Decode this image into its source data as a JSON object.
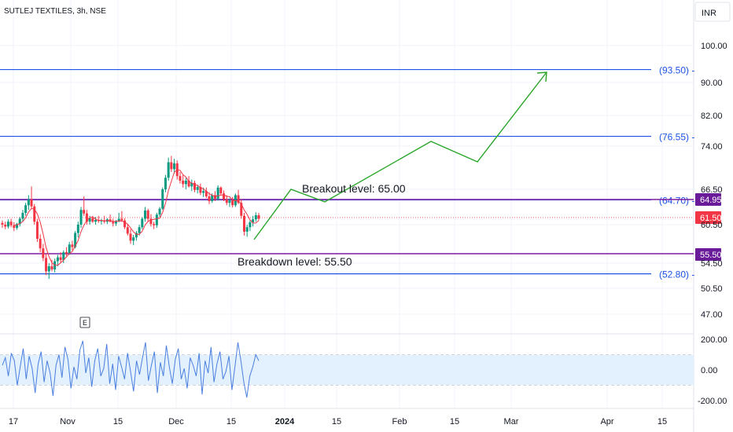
{
  "header": {
    "symbol_label": "SUTLEJ TEXTILES, 3h, NSE",
    "currency": "INR"
  },
  "chart_data": {
    "type": "candlestick",
    "y_axis": {
      "ticks": [
        100.0,
        90.0,
        82.0,
        74.0,
        66.5,
        60.5,
        54.5,
        50.5,
        47.0
      ]
    },
    "x_axis": {
      "ticks": [
        "17",
        "Nov",
        "15",
        "Dec",
        "15",
        "2024",
        "15",
        "Feb",
        "15",
        "Mar",
        "Apr",
        "15"
      ]
    },
    "horizontal_levels": [
      {
        "label": "(93.50)",
        "value": 93.5,
        "color": "#1e53e5"
      },
      {
        "label": "(76.55)",
        "value": 76.55,
        "color": "#1e53e5"
      },
      {
        "label": "(64.70)",
        "value": 64.7,
        "color": "#1e53e5"
      },
      {
        "label": "(52.80)",
        "value": 52.8,
        "color": "#1e53e5"
      }
    ],
    "price_tags": [
      {
        "text": "64.95",
        "value": 64.95,
        "color": "#6a1b9a"
      },
      {
        "text": "61.50",
        "value": 61.5,
        "color": "#f23645"
      },
      {
        "text": "55.50",
        "value": 55.5,
        "color": "#6a1b9a"
      }
    ],
    "annotations": [
      {
        "text": "Breakout level: 65.00",
        "value": 65.0
      },
      {
        "text": "Breakdown level: 55.50",
        "value": 55.5
      }
    ],
    "projection_path": [
      [
        323,
        305
      ],
      [
        370,
        241
      ],
      [
        413,
        257
      ],
      [
        548,
        180
      ],
      [
        607,
        206
      ],
      [
        695,
        92
      ]
    ],
    "candles": [
      [
        60.8,
        61.2,
        60.0,
        60.5
      ],
      [
        60.5,
        61.0,
        59.8,
        60.2
      ],
      [
        60.2,
        61.4,
        59.9,
        61.0
      ],
      [
        61.0,
        61.5,
        60.1,
        60.4
      ],
      [
        60.4,
        60.9,
        59.5,
        60.0
      ],
      [
        60.0,
        60.8,
        59.7,
        60.6
      ],
      [
        60.6,
        61.8,
        60.2,
        61.5
      ],
      [
        61.5,
        63.0,
        61.0,
        62.5
      ],
      [
        62.5,
        64.2,
        62.0,
        63.8
      ],
      [
        63.8,
        65.5,
        63.0,
        64.8
      ],
      [
        64.8,
        67.0,
        63.2,
        63.6
      ],
      [
        63.6,
        64.0,
        60.5,
        61.0
      ],
      [
        61.0,
        61.5,
        57.8,
        58.3
      ],
      [
        58.3,
        59.0,
        56.2,
        56.8
      ],
      [
        56.8,
        57.5,
        54.8,
        55.3
      ],
      [
        55.3,
        56.0,
        52.6,
        53.2
      ],
      [
        53.2,
        54.5,
        52.0,
        54.0
      ],
      [
        54.0,
        55.0,
        53.2,
        53.5
      ],
      [
        53.5,
        55.2,
        53.0,
        54.8
      ],
      [
        54.8,
        55.8,
        54.0,
        55.4
      ],
      [
        55.4,
        56.2,
        54.6,
        55.0
      ],
      [
        55.0,
        56.5,
        54.5,
        56.2
      ],
      [
        56.2,
        57.0,
        55.6,
        56.0
      ],
      [
        56.0,
        57.8,
        55.8,
        57.4
      ],
      [
        57.4,
        58.0,
        56.5,
        57.0
      ],
      [
        57.0,
        59.5,
        56.8,
        59.2
      ],
      [
        59.2,
        61.0,
        58.5,
        60.5
      ],
      [
        60.5,
        63.5,
        60.0,
        63.0
      ],
      [
        63.0,
        65.3,
        62.0,
        62.4
      ],
      [
        62.4,
        63.0,
        60.5,
        61.0
      ],
      [
        61.0,
        62.0,
        60.5,
        61.6
      ],
      [
        61.6,
        62.0,
        60.8,
        61.0
      ],
      [
        61.0,
        61.8,
        60.5,
        61.3
      ],
      [
        61.3,
        62.0,
        60.8,
        61.1
      ],
      [
        61.1,
        61.5,
        60.5,
        61.2
      ],
      [
        61.2,
        62.0,
        60.7,
        61.0
      ],
      [
        61.0,
        61.6,
        60.6,
        61.4
      ],
      [
        61.4,
        62.2,
        60.9,
        61.0
      ],
      [
        61.0,
        61.5,
        60.2,
        60.7
      ],
      [
        60.7,
        61.3,
        60.3,
        61.1
      ],
      [
        61.1,
        62.5,
        60.9,
        61.5
      ],
      [
        61.5,
        62.8,
        61.0,
        61.2
      ],
      [
        61.2,
        61.6,
        59.8,
        60.1
      ],
      [
        60.1,
        60.6,
        58.8,
        59.1
      ],
      [
        59.1,
        59.8,
        57.5,
        58.0
      ],
      [
        58.0,
        58.9,
        57.3,
        58.5
      ],
      [
        58.5,
        59.5,
        58.0,
        59.2
      ],
      [
        59.2,
        60.5,
        58.8,
        60.1
      ],
      [
        60.1,
        61.8,
        59.8,
        61.5
      ],
      [
        61.5,
        63.5,
        61.0,
        62.9
      ],
      [
        62.9,
        63.2,
        61.0,
        61.5
      ],
      [
        61.5,
        62.3,
        60.2,
        60.6
      ],
      [
        60.6,
        61.0,
        59.8,
        60.4
      ],
      [
        60.4,
        62.5,
        60.0,
        62.2
      ],
      [
        62.2,
        63.5,
        61.8,
        63.2
      ],
      [
        63.2,
        66.8,
        63.0,
        66.5
      ],
      [
        66.5,
        69.0,
        66.0,
        68.5
      ],
      [
        68.5,
        72.0,
        68.0,
        71.2
      ],
      [
        71.2,
        72.3,
        69.5,
        70.0
      ],
      [
        70.0,
        71.8,
        69.2,
        71.0
      ],
      [
        71.0,
        71.5,
        68.2,
        68.8
      ],
      [
        68.8,
        69.5,
        67.5,
        68.0
      ],
      [
        68.0,
        69.0,
        66.8,
        67.4
      ],
      [
        67.4,
        68.5,
        66.5,
        68.0
      ],
      [
        68.0,
        68.8,
        66.8,
        67.0
      ],
      [
        67.0,
        68.2,
        66.2,
        67.6
      ],
      [
        67.6,
        68.0,
        66.0,
        66.4
      ],
      [
        66.4,
        67.3,
        65.8,
        66.9
      ],
      [
        66.9,
        67.5,
        65.5,
        65.9
      ],
      [
        65.9,
        66.8,
        65.2,
        66.2
      ],
      [
        66.2,
        66.8,
        65.0,
        65.3
      ],
      [
        65.3,
        66.0,
        64.0,
        64.5
      ],
      [
        64.5,
        65.8,
        64.2,
        65.5
      ],
      [
        65.5,
        66.2,
        64.5,
        64.9
      ],
      [
        64.9,
        67.2,
        64.6,
        66.8
      ],
      [
        66.8,
        67.0,
        65.5,
        65.8
      ],
      [
        65.8,
        66.3,
        64.5,
        64.8
      ],
      [
        64.8,
        65.5,
        63.8,
        64.2
      ],
      [
        64.2,
        65.0,
        63.5,
        64.6
      ],
      [
        64.6,
        65.2,
        63.4,
        63.8
      ],
      [
        63.8,
        65.8,
        63.5,
        65.5
      ],
      [
        65.5,
        66.4,
        64.0,
        64.2
      ],
      [
        64.2,
        64.8,
        61.5,
        62.0
      ],
      [
        62.0,
        62.5,
        58.8,
        59.4
      ],
      [
        59.4,
        60.5,
        58.6,
        60.1
      ],
      [
        60.1,
        61.2,
        59.5,
        60.9
      ],
      [
        60.9,
        62.0,
        60.2,
        61.4
      ],
      [
        61.4,
        62.6,
        61.0,
        62.1
      ],
      [
        62.1,
        62.5,
        61.2,
        61.5
      ]
    ],
    "oscillator": {
      "ticks": [
        200.0,
        0.0,
        -200.0
      ],
      "values": [
        30,
        80,
        -40,
        110,
        60,
        -100,
        20,
        140,
        -60,
        90,
        10,
        -150,
        40,
        120,
        -80,
        60,
        -20,
        -170,
        30,
        100,
        -50,
        150,
        70,
        -120,
        20,
        -60,
        130,
        190,
        -20,
        80,
        -110,
        60,
        140,
        -40,
        10,
        170,
        -90,
        40,
        -130,
        90,
        20,
        -60,
        110,
        -10,
        -140,
        60,
        -30,
        80,
        180,
        -70,
        30,
        120,
        -150,
        50,
        -40,
        160,
        20,
        -90,
        70,
        140,
        -60,
        10,
        -120,
        80,
        30,
        -40,
        110,
        -160,
        60,
        -20,
        150,
        -80,
        40,
        120,
        -60,
        -10,
        90,
        -130,
        20,
        180,
        60,
        -80,
        -180,
        -40,
        20,
        100,
        60
      ]
    }
  }
}
